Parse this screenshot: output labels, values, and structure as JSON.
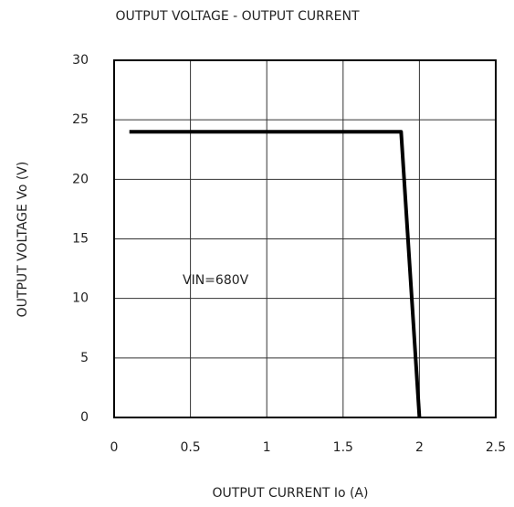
{
  "chart_data": {
    "type": "line",
    "title": "OUTPUT VOLTAGE - OUTPUT CURRENT",
    "x_label": "OUTPUT CURRENT  Io (A)",
    "y_label": "OUTPUT VOLTAGE Vo (V)",
    "annotation": "VIN=680V",
    "x": [
      0.1,
      1.88,
      2.0
    ],
    "series": [
      {
        "name": "VIN=680V",
        "color": "#000000",
        "values": [
          24,
          24,
          0
        ]
      }
    ],
    "xlim": [
      0,
      2.5
    ],
    "xticks": [
      0,
      0.5,
      1,
      1.5,
      2,
      2.5
    ],
    "ylim": [
      0,
      30
    ],
    "yticks": [
      0,
      5,
      10,
      15,
      20,
      25,
      30
    ],
    "grid": true
  }
}
